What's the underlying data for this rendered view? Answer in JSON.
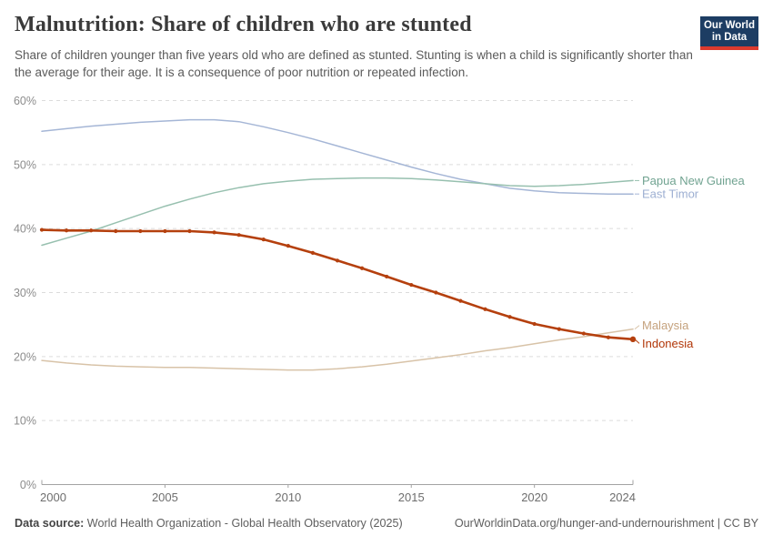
{
  "header": {
    "title": "Malnutrition: Share of children who are stunted",
    "subtitle": "Share of children younger than five years old who are defined as stunted. Stunting is when a child is significantly shorter than the average for their age. It is a consequence of poor nutrition or repeated infection.",
    "logo": {
      "line1": "Our World",
      "line2": "in Data"
    }
  },
  "colors": {
    "logo_navy": "#1D3D63",
    "logo_red": "#DC3A2E",
    "grid": "#DCDCDC",
    "axis": "#A3A3A3",
    "y_tick_text": "#8C8C8C",
    "x_tick_text": "#6E6E6E"
  },
  "chart_data": {
    "type": "line",
    "title": "Malnutrition: Share of children who are stunted",
    "subtitle": "Share of children younger than five years old who are defined as stunted.",
    "xlabel": "",
    "ylabel": "",
    "xlim": [
      2000,
      2024
    ],
    "ylim": [
      0,
      60
    ],
    "grid": "horizontal-dashed",
    "legend_position": "end-of-line-labels-right",
    "x": [
      2000,
      2001,
      2002,
      2003,
      2004,
      2005,
      2006,
      2007,
      2008,
      2009,
      2010,
      2011,
      2012,
      2013,
      2014,
      2015,
      2016,
      2017,
      2018,
      2019,
      2020,
      2021,
      2022,
      2023,
      2024
    ],
    "xticks": [
      2000,
      2005,
      2010,
      2015,
      2020,
      2024
    ],
    "xtick_labels": [
      "2000",
      "2005",
      "2010",
      "2015",
      "2020",
      "2024"
    ],
    "yticks": [
      0,
      10,
      20,
      30,
      40,
      50,
      60
    ],
    "ytick_labels": [
      "0%",
      "10%",
      "20%",
      "30%",
      "40%",
      "50%",
      "60%"
    ],
    "series": [
      {
        "name": "East Timor",
        "color": "#A5B6D6",
        "label_color": "#9DAFD2",
        "line_width": 1.5,
        "markers": false,
        "label_offset": 0,
        "values": [
          55.2,
          55.6,
          56.0,
          56.3,
          56.6,
          56.8,
          57.0,
          57.0,
          56.7,
          55.9,
          55.0,
          54.0,
          52.9,
          51.8,
          50.7,
          49.6,
          48.6,
          47.7,
          47.0,
          46.3,
          45.9,
          45.6,
          45.5,
          45.4,
          45.4
        ]
      },
      {
        "name": "Papua New Guinea",
        "color": "#97C0AF",
        "label_color": "#71A391",
        "line_width": 1.5,
        "markers": false,
        "label_offset": 0,
        "values": [
          37.4,
          38.5,
          39.6,
          40.9,
          42.2,
          43.5,
          44.6,
          45.6,
          46.4,
          47.0,
          47.4,
          47.7,
          47.8,
          47.9,
          47.9,
          47.8,
          47.6,
          47.3,
          47.0,
          46.7,
          46.6,
          46.7,
          46.9,
          47.2,
          47.5
        ]
      },
      {
        "name": "Malaysia",
        "color": "#D8C3A8",
        "label_color": "#C5A27E",
        "line_width": 1.5,
        "markers": false,
        "label_offset": -4,
        "values": [
          19.4,
          19.0,
          18.7,
          18.5,
          18.4,
          18.3,
          18.3,
          18.2,
          18.1,
          18.0,
          17.9,
          17.9,
          18.1,
          18.4,
          18.8,
          19.3,
          19.8,
          20.3,
          20.9,
          21.4,
          22.0,
          22.6,
          23.1,
          23.7,
          24.3
        ]
      },
      {
        "name": "Indonesia",
        "color": "#B5400E",
        "label_color": "#B13507",
        "line_width": 2.6,
        "markers": true,
        "label_offset": 4.5,
        "values": [
          39.8,
          39.7,
          39.7,
          39.6,
          39.6,
          39.6,
          39.6,
          39.4,
          39.0,
          38.3,
          37.3,
          36.2,
          35.0,
          33.8,
          32.5,
          31.2,
          30.0,
          28.7,
          27.4,
          26.2,
          25.1,
          24.3,
          23.6,
          23.0,
          22.7
        ]
      }
    ]
  },
  "footer": {
    "source_label": "Data source:",
    "source_text": "World Health Organization - Global Health Observatory (2025)",
    "link_text": "OurWorldinData.org/hunger-and-undernourishment | CC BY"
  }
}
